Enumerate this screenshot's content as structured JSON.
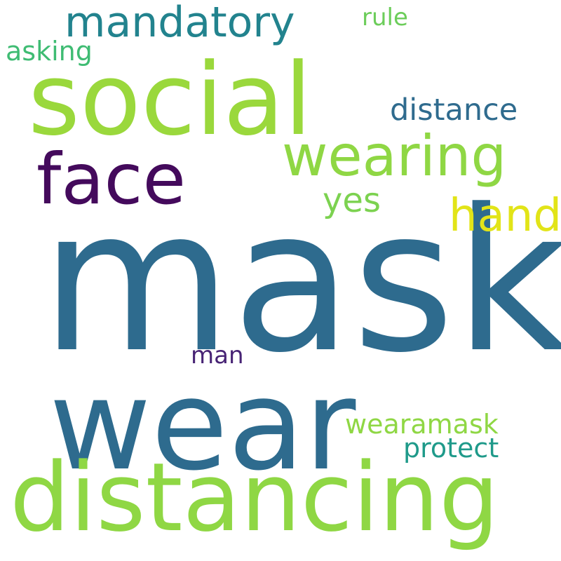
{
  "background": "#ffffff",
  "words": {
    "mask": {
      "text": "mask",
      "color": "#2e6b8e"
    },
    "wear": {
      "text": "wear",
      "color": "#2e6b8e"
    },
    "social": {
      "text": "social",
      "color": "#9ad83c"
    },
    "distancing": {
      "text": "distancing",
      "color": "#8fd744"
    },
    "face": {
      "text": "face",
      "color": "#440a5c"
    },
    "wearing": {
      "text": "wearing",
      "color": "#8fd744"
    },
    "mandatory": {
      "text": "mandatory",
      "color": "#22838e"
    },
    "hand": {
      "text": "hand",
      "color": "#e2e418"
    },
    "distance": {
      "text": "distance",
      "color": "#2f6b8e"
    },
    "yes": {
      "text": "yes",
      "color": "#7cd250"
    },
    "wearamask": {
      "text": "wearamask",
      "color": "#8fd744"
    },
    "protect": {
      "text": "protect",
      "color": "#1f9a8a"
    },
    "asking": {
      "text": "asking",
      "color": "#3fbc73"
    },
    "rule": {
      "text": "rule",
      "color": "#6ccd5a"
    },
    "man": {
      "text": "man",
      "color": "#482475"
    }
  }
}
